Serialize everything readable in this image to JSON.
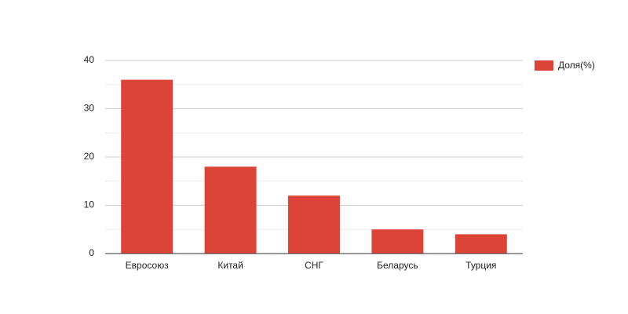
{
  "chart_data": {
    "type": "bar",
    "categories": [
      "Евросоюз",
      "Китай",
      "СНГ",
      "Беларусь",
      "Турция"
    ],
    "series": [
      {
        "name": "Доля(%)",
        "color": "#dc4437",
        "values": [
          36,
          18,
          12,
          5,
          4
        ]
      }
    ],
    "ylim": [
      0,
      40
    ],
    "yticks": [
      0,
      10,
      20,
      30,
      40
    ],
    "minor_yticks": [
      5,
      15,
      25,
      35
    ],
    "grid": true,
    "legend": "right"
  }
}
